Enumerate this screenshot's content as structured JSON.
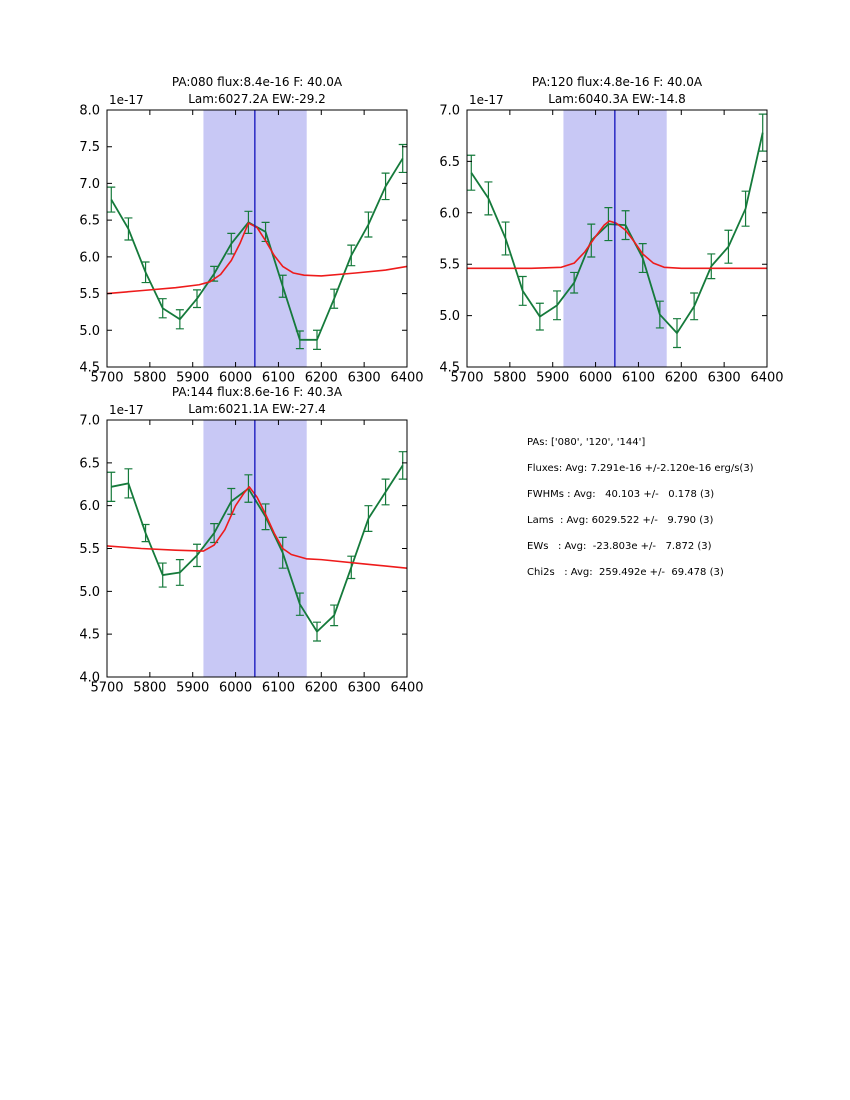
{
  "colors": {
    "background": "#ffffff",
    "axis": "#000000",
    "spectrum_line": "#157a3b",
    "fit_line": "#ee1b1b",
    "center_line": "#1111bb",
    "band_fill": "#c8c8f5"
  },
  "stats_panel": {
    "lines": [
      "PAs: ['080', '120', '144']",
      "Fluxes: Avg: 7.291e-16 +/-2.120e-16 erg/s(3)",
      "FWHMs : Avg:   40.103 +/-   0.178 (3)",
      "Lams  : Avg: 6029.522 +/-   9.790 (3)",
      "EWs   : Avg:  -23.803e +/-   7.872 (3)",
      "Chi2s   : Avg:  259.492e +/-  69.478 (3)"
    ]
  },
  "chart_data": [
    {
      "type": "line",
      "title_line1": "PA:080 flux:8.4e-16 F: 40.0A",
      "title_line2": "Lam:6027.2A EW:-29.2",
      "y_offset_label": "1e-17",
      "xlim": [
        5700,
        6400
      ],
      "ylim": [
        4.5,
        8.0
      ],
      "xticks": [
        5700,
        5800,
        5900,
        6000,
        6100,
        6200,
        6300,
        6400
      ],
      "xtick_labels": [
        "5700",
        "5800",
        "5900",
        "6000",
        "6100",
        "6200",
        "6300",
        "6400"
      ],
      "yticks": [
        4.5,
        5.0,
        5.5,
        6.0,
        6.5,
        7.0,
        7.5,
        8.0
      ],
      "ytick_labels": [
        "4.5",
        "5.0",
        "5.5",
        "6.0",
        "6.5",
        "7.0",
        "7.5",
        "8.0"
      ],
      "highlight_band_x": [
        5925,
        6166
      ],
      "center_line_x": 6045,
      "x": [
        5710,
        5750,
        5790,
        5830,
        5870,
        5910,
        5950,
        5990,
        6030,
        6070,
        6110,
        6150,
        6190,
        6230,
        6270,
        6310,
        6350,
        6390
      ],
      "series": [
        {
          "name": "spectrum",
          "color": "#157a3b",
          "y": [
            6.78,
            6.38,
            5.79,
            5.3,
            5.15,
            5.43,
            5.77,
            6.18,
            6.47,
            6.34,
            5.6,
            4.87,
            4.87,
            5.43,
            6.02,
            6.44,
            6.96,
            7.34
          ],
          "yerr": [
            0.17,
            0.15,
            0.14,
            0.13,
            0.13,
            0.12,
            0.1,
            0.14,
            0.15,
            0.13,
            0.15,
            0.12,
            0.13,
            0.13,
            0.14,
            0.17,
            0.18,
            0.19
          ]
        },
        {
          "name": "continuum_fit",
          "color": "#ee1b1b",
          "x": [
            5700,
            5780,
            5860,
            5915,
            5940,
            5965,
            5990,
            6010,
            6030,
            6050,
            6070,
            6090,
            6110,
            6135,
            6160,
            6200,
            6280,
            6350,
            6400
          ],
          "y": [
            5.5,
            5.54,
            5.58,
            5.62,
            5.66,
            5.76,
            5.95,
            6.18,
            6.46,
            6.4,
            6.22,
            6.02,
            5.87,
            5.78,
            5.75,
            5.74,
            5.78,
            5.82,
            5.87
          ]
        }
      ]
    },
    {
      "type": "line",
      "title_line1": "PA:120 flux:4.8e-16 F: 40.0A",
      "title_line2": "Lam:6040.3A EW:-14.8",
      "y_offset_label": "1e-17",
      "xlim": [
        5700,
        6400
      ],
      "ylim": [
        4.5,
        7.0
      ],
      "xticks": [
        5700,
        5800,
        5900,
        6000,
        6100,
        6200,
        6300,
        6400
      ],
      "xtick_labels": [
        "5700",
        "5800",
        "5900",
        "6000",
        "6100",
        "6200",
        "6300",
        "6400"
      ],
      "yticks": [
        4.5,
        5.0,
        5.5,
        6.0,
        6.5,
        7.0
      ],
      "ytick_labels": [
        "4.5",
        "5.0",
        "5.5",
        "6.0",
        "6.5",
        "7.0"
      ],
      "highlight_band_x": [
        5925,
        6166
      ],
      "center_line_x": 6045,
      "x": [
        5710,
        5750,
        5790,
        5830,
        5870,
        5910,
        5950,
        5990,
        6030,
        6070,
        6110,
        6150,
        6190,
        6230,
        6270,
        6310,
        6350,
        6390
      ],
      "series": [
        {
          "name": "spectrum",
          "color": "#157a3b",
          "y": [
            6.39,
            6.14,
            5.75,
            5.24,
            4.99,
            5.1,
            5.32,
            5.73,
            5.89,
            5.88,
            5.56,
            5.01,
            4.83,
            5.09,
            5.48,
            5.67,
            6.04,
            6.78
          ],
          "yerr": [
            0.17,
            0.16,
            0.16,
            0.14,
            0.13,
            0.14,
            0.1,
            0.16,
            0.16,
            0.14,
            0.14,
            0.13,
            0.14,
            0.13,
            0.12,
            0.16,
            0.17,
            0.18
          ]
        },
        {
          "name": "continuum_fit",
          "color": "#ee1b1b",
          "x": [
            5700,
            5850,
            5920,
            5950,
            5975,
            6000,
            6020,
            6032,
            6048,
            6070,
            6090,
            6110,
            6135,
            6160,
            6200,
            6400
          ],
          "y": [
            5.46,
            5.46,
            5.47,
            5.51,
            5.62,
            5.77,
            5.88,
            5.92,
            5.9,
            5.83,
            5.72,
            5.6,
            5.51,
            5.47,
            5.46,
            5.46
          ]
        }
      ]
    },
    {
      "type": "line",
      "title_line1": "PA:144 flux:8.6e-16 F: 40.3A",
      "title_line2": "Lam:6021.1A EW:-27.4",
      "y_offset_label": "1e-17",
      "xlim": [
        5700,
        6400
      ],
      "ylim": [
        4.0,
        7.0
      ],
      "xticks": [
        5700,
        5800,
        5900,
        6000,
        6100,
        6200,
        6300,
        6400
      ],
      "xtick_labels": [
        "5700",
        "5800",
        "5900",
        "6000",
        "6100",
        "6200",
        "6300",
        "6400"
      ],
      "yticks": [
        4.0,
        4.5,
        5.0,
        5.5,
        6.0,
        6.5,
        7.0
      ],
      "ytick_labels": [
        "4.0",
        "4.5",
        "5.0",
        "5.5",
        "6.0",
        "6.5",
        "7.0"
      ],
      "highlight_band_x": [
        5925,
        6166
      ],
      "center_line_x": 6045,
      "x": [
        5710,
        5750,
        5790,
        5830,
        5870,
        5910,
        5950,
        5990,
        6030,
        6070,
        6110,
        6150,
        6190,
        6230,
        6270,
        6310,
        6350,
        6390
      ],
      "series": [
        {
          "name": "spectrum",
          "color": "#157a3b",
          "y": [
            6.22,
            6.26,
            5.68,
            5.19,
            5.22,
            5.42,
            5.68,
            6.05,
            6.2,
            5.87,
            5.45,
            4.85,
            4.53,
            4.72,
            5.28,
            5.85,
            6.16,
            6.47
          ],
          "yerr": [
            0.17,
            0.17,
            0.1,
            0.14,
            0.15,
            0.13,
            0.11,
            0.15,
            0.16,
            0.15,
            0.18,
            0.13,
            0.11,
            0.12,
            0.13,
            0.15,
            0.15,
            0.16
          ]
        },
        {
          "name": "continuum_fit",
          "color": "#ee1b1b",
          "x": [
            5700,
            5780,
            5860,
            5925,
            5950,
            5975,
            6000,
            6020,
            6032,
            6050,
            6070,
            6090,
            6110,
            6130,
            6165,
            6200,
            6300,
            6400
          ],
          "y": [
            5.53,
            5.5,
            5.48,
            5.47,
            5.54,
            5.72,
            6.0,
            6.15,
            6.22,
            6.1,
            5.9,
            5.68,
            5.5,
            5.43,
            5.38,
            5.37,
            5.32,
            5.27
          ]
        }
      ]
    }
  ]
}
